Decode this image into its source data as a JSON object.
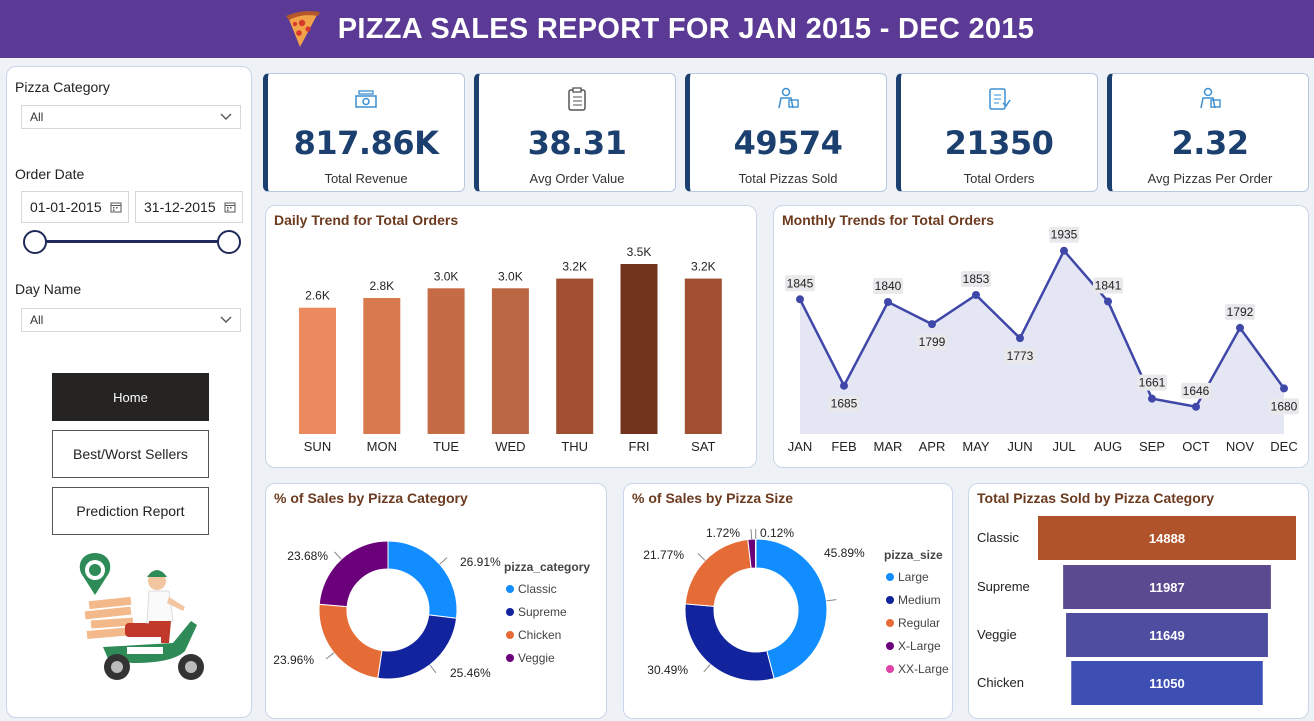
{
  "header": {
    "title": "PIZZA SALES REPORT FOR JAN 2015 - DEC 2015"
  },
  "filters": {
    "pizza_category": {
      "label": "Pizza Category",
      "value": "All"
    },
    "order_date": {
      "label": "Order Date",
      "start": "01-01-2015",
      "end": "31-12-2015"
    },
    "day_name": {
      "label": "Day Name",
      "value": "All"
    }
  },
  "nav": {
    "home": "Home",
    "best_worst": "Best/Worst Sellers",
    "prediction": "Prediction Report"
  },
  "kpis": [
    {
      "value": "817.86K",
      "label": "Total Revenue",
      "icon": "money-icon"
    },
    {
      "value": "38.31",
      "label": "Avg Order Value",
      "icon": "clipboard-icon"
    },
    {
      "value": "49574",
      "label": "Total Pizzas Sold",
      "icon": "delivery-person-icon"
    },
    {
      "value": "21350",
      "label": "Total Orders",
      "icon": "order-list-icon"
    },
    {
      "value": "2.32",
      "label": "Avg Pizzas Per Order",
      "icon": "delivery-person-icon"
    }
  ],
  "colors": {
    "banner": "#5b3a96",
    "kpi_value": "#1b3f6e",
    "card_title": "#6b3a1f",
    "line": "#3f47a8"
  },
  "chart_data": [
    {
      "type": "bar",
      "title": "Daily Trend for Total Orders",
      "categories": [
        "SUN",
        "MON",
        "TUE",
        "WED",
        "THU",
        "FRI",
        "SAT"
      ],
      "values": [
        2600,
        2800,
        3000,
        3000,
        3200,
        3500,
        3200
      ],
      "labels": [
        "2.6K",
        "2.8K",
        "3.0K",
        "3.0K",
        "3.2K",
        "3.5K",
        "3.2K"
      ],
      "colors": [
        "#ea8a5e",
        "#d9794e",
        "#c56c47",
        "#bb6743",
        "#a04f33",
        "#72331d",
        "#a04f33"
      ],
      "grid": false
    },
    {
      "type": "area",
      "title": "Monthly Trends for Total Orders",
      "categories": [
        "JAN",
        "FEB",
        "MAR",
        "APR",
        "MAY",
        "JUN",
        "JUL",
        "AUG",
        "SEP",
        "OCT",
        "NOV",
        "DEC"
      ],
      "values": [
        1845,
        1685,
        1840,
        1799,
        1853,
        1773,
        1935,
        1841,
        1661,
        1646,
        1792,
        1680
      ],
      "grid": false
    },
    {
      "type": "pie",
      "title": "% of Sales by Pizza Category",
      "legend_title": "pizza_category",
      "legend_position": "right",
      "categories": [
        "Classic",
        "Supreme",
        "Chicken",
        "Veggie"
      ],
      "values": [
        26.91,
        25.46,
        23.96,
        23.68
      ],
      "labels": [
        "26.91%",
        "25.46%",
        "23.96%",
        "23.68%"
      ],
      "colors": [
        "#118dff",
        "#12239e",
        "#e66c37",
        "#6b007b"
      ]
    },
    {
      "type": "pie",
      "title": "% of Sales by Pizza Size",
      "legend_title": "pizza_size",
      "legend_position": "right",
      "categories": [
        "Large",
        "Medium",
        "Regular",
        "X-Large",
        "XX-Large"
      ],
      "values": [
        45.89,
        30.49,
        21.77,
        1.72,
        0.12
      ],
      "labels": [
        "45.89%",
        "30.49%",
        "21.77%",
        "1.72%",
        "0.12%"
      ],
      "colors": [
        "#118dff",
        "#12239e",
        "#e66c37",
        "#6b007b",
        "#e044a7"
      ]
    },
    {
      "type": "bar",
      "orientation": "horizontal",
      "title": "Total Pizzas Sold by Pizza Category",
      "categories": [
        "Classic",
        "Supreme",
        "Veggie",
        "Chicken"
      ],
      "values": [
        14888,
        11987,
        11649,
        11050
      ],
      "colors": [
        "#b0532a",
        "#5b4a8f",
        "#4e4da0",
        "#3e4fb3"
      ]
    }
  ]
}
